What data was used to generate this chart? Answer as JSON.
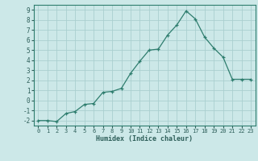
{
  "x": [
    0,
    1,
    2,
    3,
    4,
    5,
    6,
    7,
    8,
    9,
    10,
    11,
    12,
    13,
    14,
    15,
    16,
    17,
    18,
    19,
    20,
    21,
    22,
    23
  ],
  "y": [
    -2,
    -2,
    -2.1,
    -1.3,
    -1.1,
    -0.4,
    -0.3,
    0.8,
    0.9,
    1.2,
    2.7,
    3.9,
    5.0,
    5.1,
    6.5,
    7.5,
    8.9,
    8.1,
    6.3,
    5.2,
    4.3,
    2.1,
    2.1,
    2.1
  ],
  "xlabel": "Humidex (Indice chaleur)",
  "xlim": [
    -0.5,
    23.5
  ],
  "ylim": [
    -2.5,
    9.5
  ],
  "yticks": [
    -2,
    -1,
    0,
    1,
    2,
    3,
    4,
    5,
    6,
    7,
    8,
    9
  ],
  "xticks": [
    0,
    1,
    2,
    3,
    4,
    5,
    6,
    7,
    8,
    9,
    10,
    11,
    12,
    13,
    14,
    15,
    16,
    17,
    18,
    19,
    20,
    21,
    22,
    23
  ],
  "line_color": "#2e7d6e",
  "marker": "+",
  "bg_color": "#cce8e8",
  "grid_color": "#aacfcf",
  "font_color": "#2e5f5a",
  "spine_color": "#2e7d6e"
}
